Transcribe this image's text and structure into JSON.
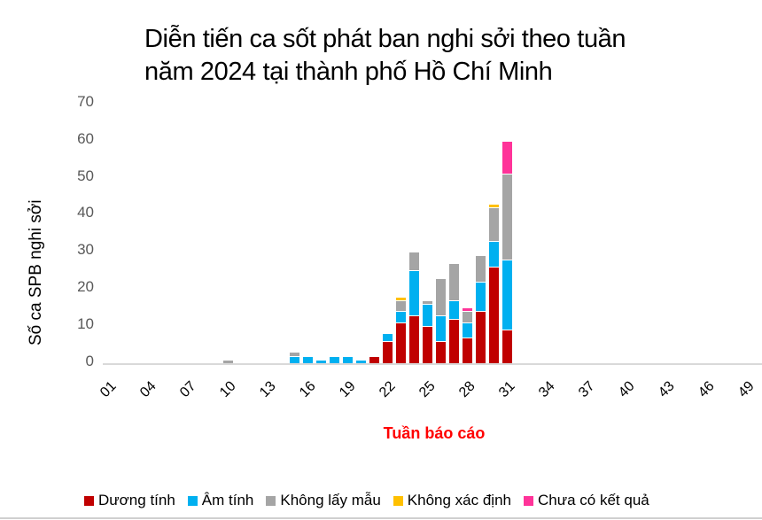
{
  "title_line1": "Diễn tiến ca sốt phát ban nghi sởi theo tuần",
  "title_line2": "năm 2024 tại thành phố Hồ Chí Minh",
  "colors": {
    "duong_tinh": "#c00000",
    "am_tinh": "#00b0f0",
    "khong_lay_mau": "#a5a5a5",
    "khong_xac_dinh": "#ffc000",
    "chua_co_ket_qua": "#ff3399"
  },
  "chart_data": {
    "type": "bar",
    "stacked": true,
    "title": "Diễn tiến ca sốt phát ban nghi sởi theo tuần năm 2024 tại thành phố Hồ Chí Minh",
    "xlabel": "Tuần báo cáo",
    "ylabel": "Số ca SPB nghi sởi",
    "ylim": [
      0,
      70
    ],
    "yticks": [
      0,
      10,
      20,
      30,
      40,
      50,
      60,
      70
    ],
    "xtick_labels": [
      "01",
      "04",
      "07",
      "10",
      "13",
      "16",
      "19",
      "22",
      "25",
      "28",
      "31",
      "34",
      "37",
      "40",
      "43",
      "46",
      "49"
    ],
    "grid": false,
    "legend_position": "bottom",
    "categories": [
      10,
      15,
      16,
      17,
      18,
      19,
      20,
      21,
      22,
      23,
      24,
      25,
      26,
      27,
      28,
      29,
      30,
      31
    ],
    "series": [
      {
        "name": "Dương tính",
        "color": "#c00000",
        "values": [
          0,
          0,
          0,
          0,
          0,
          0,
          0,
          2,
          6,
          11,
          13,
          10,
          6,
          12,
          7,
          14,
          26,
          9
        ]
      },
      {
        "name": "Âm tính",
        "color": "#00b0f0",
        "values": [
          0,
          2,
          2,
          1,
          2,
          2,
          1,
          0,
          2,
          3,
          12,
          6,
          7,
          5,
          4,
          8,
          7,
          19
        ]
      },
      {
        "name": "Không lấy mẫu",
        "color": "#a5a5a5",
        "values": [
          1,
          1,
          0,
          0,
          0,
          0,
          0,
          0,
          0,
          3,
          5,
          1,
          10,
          10,
          3,
          7,
          9,
          23
        ]
      },
      {
        "name": "Không xác định",
        "color": "#ffc000",
        "values": [
          0,
          0,
          0,
          0,
          0,
          0,
          0,
          0,
          0,
          1,
          0,
          0,
          0,
          0,
          0,
          0,
          1,
          0
        ]
      },
      {
        "name": "Chưa có kết quả",
        "color": "#ff3399",
        "values": [
          0,
          0,
          0,
          0,
          0,
          0,
          0,
          0,
          0,
          0,
          0,
          0,
          0,
          0,
          1,
          0,
          0,
          9
        ]
      }
    ],
    "note": "Weeks 1-52 on x-axis; weeks not listed in categories have zero cases."
  },
  "legend": [
    {
      "label": "Dương tính",
      "color": "#c00000"
    },
    {
      "label": "Âm tính",
      "color": "#00b0f0"
    },
    {
      "label": "Không lấy mẫu",
      "color": "#a5a5a5"
    },
    {
      "label": "Không xác định",
      "color": "#ffc000"
    },
    {
      "label": "Chưa có kết quả",
      "color": "#ff3399"
    }
  ]
}
